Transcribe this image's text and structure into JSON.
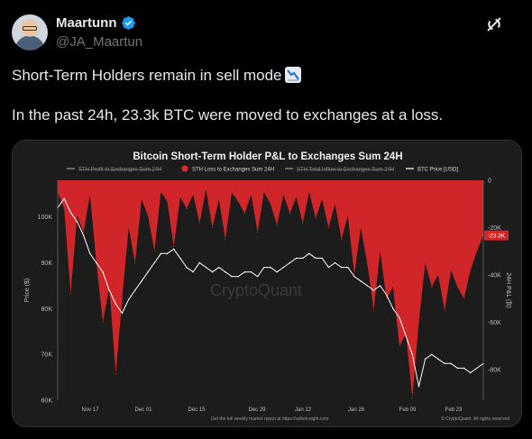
{
  "author": {
    "display_name": "Maartunn",
    "handle": "@JA_Maartun",
    "verified": true,
    "avatar_icon": "avatar-photo"
  },
  "header_icon": "grok-icon",
  "tweet": {
    "line1": "Short-Term Holders remain in sell mode",
    "line1_emoji": "chart-decreasing-emoji",
    "line2": "In the past 24h, 23.3k BTC were moved to exchanges at a loss."
  },
  "chart_data": {
    "type": "area",
    "title": "Bitcoin Short-Term Holder P&L to Exchanges Sum 24H",
    "legend": [
      {
        "name": "STH Profit to Exchanges Sum 24H",
        "color": "#9a9a9a",
        "struck": true
      },
      {
        "name": "STH Loss to Exchanges Sum 24H",
        "color": "#e0282a",
        "struck": false
      },
      {
        "name": "STH Total Inflow to Exchanges Sum 24H",
        "color": "#9a9a9a",
        "struck": true
      },
      {
        "name": "BTC Price [USD]",
        "color": "#ffffff",
        "struck": false
      }
    ],
    "legend_placement": "top",
    "watermark": "CryptoQuant",
    "x_ticks": [
      "Nov 17",
      "Dec 01",
      "Dec 15",
      "Dec 29",
      "Jan 12",
      "Jan 26",
      "Feb 09",
      "Feb 23"
    ],
    "y_left_label": "Price ($)",
    "y_left_ticks": [
      "100K",
      "90K",
      "80K",
      "70K",
      "60K"
    ],
    "y_left_range": [
      60000,
      108000
    ],
    "y_right_label": "24H P&L (₿)",
    "y_right_ticks": [
      "0",
      "-20K",
      "-40K",
      "-60K",
      "-80K"
    ],
    "y_right_range": [
      -93000,
      0
    ],
    "current_value_label": "-23.3K",
    "footer_left": "Get the full weekly market report at https://adlerinsight.com",
    "footer_right": "© CryptoQuant. All rights reserved",
    "grid": false,
    "colors": {
      "background": "#1c1c1c",
      "loss": "#d0262a",
      "price": "#ffffff",
      "text": "#bdbdbd"
    },
    "series": [
      {
        "name": "BTC Price [USD]",
        "values": [
          102000,
          104000,
          101000,
          99000,
          96000,
          92000,
          90000,
          88000,
          84000,
          81000,
          79000,
          82000,
          84000,
          86000,
          88000,
          90000,
          92000,
          92000,
          93000,
          91000,
          89000,
          88000,
          90000,
          89000,
          88000,
          89000,
          88000,
          87000,
          87000,
          88000,
          88000,
          87000,
          89000,
          89000,
          88000,
          89000,
          90000,
          91000,
          91000,
          92000,
          91000,
          91000,
          89000,
          90000,
          89000,
          89000,
          87000,
          86000,
          85000,
          84000,
          85000,
          83000,
          80000,
          78000,
          74000,
          70000,
          63000,
          69000,
          70000,
          69000,
          68000,
          68000,
          67000,
          67000,
          66000,
          67000,
          68000
        ]
      },
      {
        "name": "STH Loss to Exchanges Sum 24H",
        "values": [
          -5000,
          -12000,
          -48000,
          -15000,
          -22000,
          -6000,
          -35000,
          -60000,
          -45000,
          -82000,
          -50000,
          -20000,
          -35000,
          -8000,
          -15000,
          -30000,
          -5000,
          -9000,
          -28000,
          -7000,
          -12000,
          -6000,
          -18000,
          -4000,
          -20000,
          -8000,
          -25000,
          -5000,
          -9000,
          -14000,
          -6000,
          -22000,
          -5000,
          -10000,
          -19000,
          -6000,
          -14000,
          -7000,
          -18000,
          -5000,
          -16000,
          -8000,
          -20000,
          -10000,
          -25000,
          -15000,
          -40000,
          -20000,
          -35000,
          -55000,
          -30000,
          -50000,
          -45000,
          -70000,
          -65000,
          -92000,
          -60000,
          -35000,
          -45000,
          -40000,
          -55000,
          -38000,
          -45000,
          -50000,
          -38000,
          -30000,
          -23300
        ]
      }
    ]
  }
}
